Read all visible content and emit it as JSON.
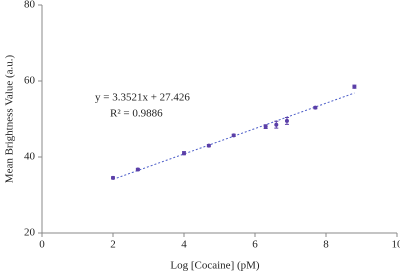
{
  "chart_data": {
    "type": "scatter",
    "x_label": "Log [Cocaine] (pM)",
    "y_label": "Mean Brightness Value (a.u.)",
    "annotations": [
      "y = 3.3521x + 27.426",
      "R² = 0.9886"
    ],
    "x": [
      2,
      2.7,
      4,
      4.7,
      5.4,
      6.3,
      6.6,
      6.9,
      7.7,
      8.8
    ],
    "values": [
      34.5,
      36.7,
      41,
      43,
      45.7,
      48,
      48.5,
      49.5,
      53,
      58.5
    ],
    "errors": [
      0.3,
      0.3,
      0.4,
      0.3,
      0.3,
      0.5,
      0.9,
      0.9,
      0.3,
      0.4
    ],
    "color": "#5b3fa8",
    "trendline": true,
    "xlim": [
      0,
      10
    ],
    "xticks": [
      0,
      2,
      4,
      6,
      8,
      10
    ],
    "ylim": [
      20,
      80
    ],
    "yticks": [
      20,
      40,
      60,
      80
    ]
  }
}
